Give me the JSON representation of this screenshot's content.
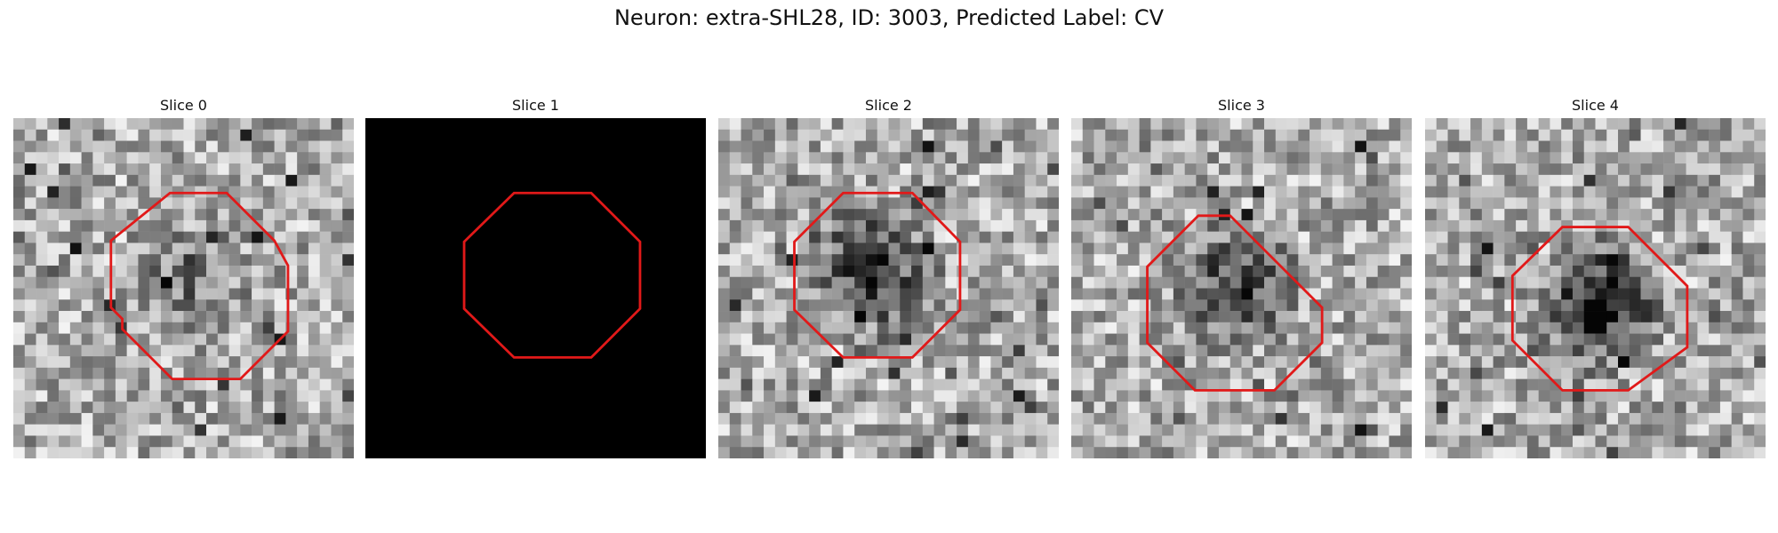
{
  "figure": {
    "title": "Neuron: extra-SHL28, ID: 3003, Predicted Label: CV"
  },
  "outline_color": "#e11919",
  "panels": [
    {
      "title": "Slice 0",
      "content": "grayscale-noise",
      "center_dark": false
    },
    {
      "title": "Slice 1",
      "content": "black",
      "center_dark": false
    },
    {
      "title": "Slice 2",
      "content": "grayscale-noise",
      "center_dark": true
    },
    {
      "title": "Slice 3",
      "content": "grayscale-noise",
      "center_dark": true
    },
    {
      "title": "Slice 4",
      "content": "grayscale-noise",
      "center_dark": true
    }
  ]
}
